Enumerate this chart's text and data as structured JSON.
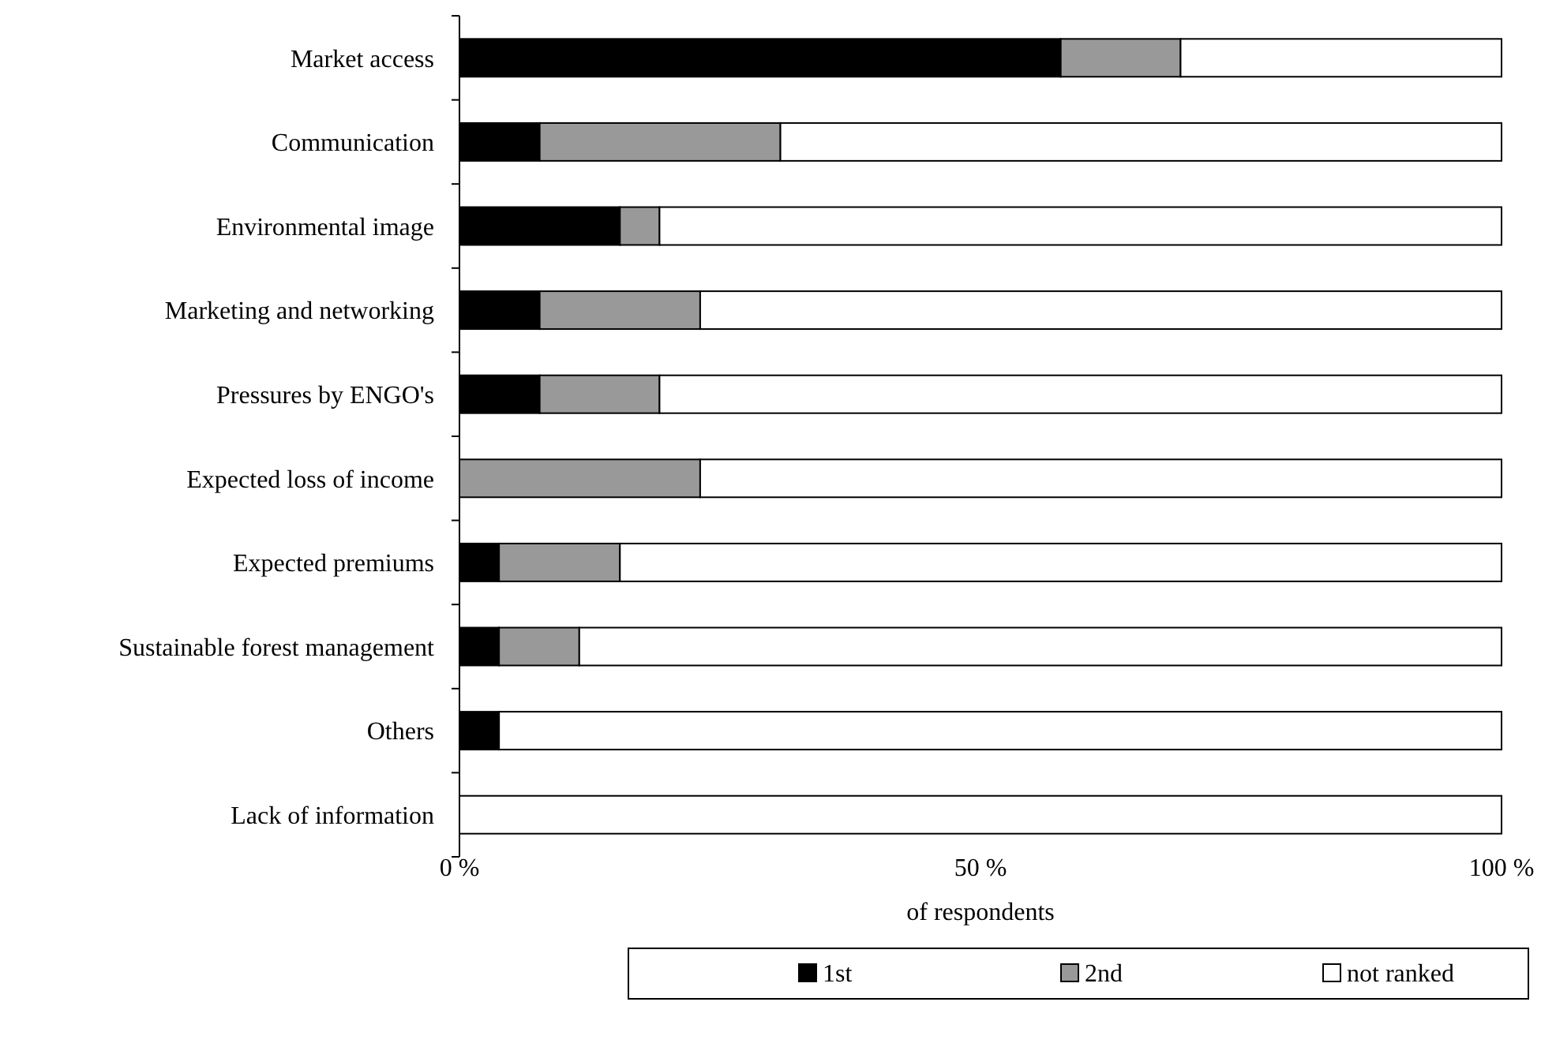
{
  "chart_data": {
    "type": "bar",
    "orientation": "horizontal",
    "stacked": true,
    "xlabel": "of respondents",
    "categories": [
      "Market access",
      "Communication",
      "Environmental image",
      "Marketing and networking",
      "Pressures by ENGO's",
      "Expected loss of income",
      "Expected premiums",
      "Sustainable forest management",
      "Others",
      "Lack of information"
    ],
    "series": [
      {
        "name": "1st",
        "color": "#000000",
        "values": [
          57.7,
          7.7,
          15.4,
          7.7,
          7.7,
          0,
          3.8,
          3.8,
          3.8,
          0
        ]
      },
      {
        "name": "2nd",
        "color": "#999999",
        "values": [
          11.5,
          23.1,
          3.8,
          15.4,
          11.5,
          23.1,
          11.6,
          7.7,
          0,
          0
        ]
      },
      {
        "name": "not ranked",
        "color": "#ffffff",
        "values": [
          30.8,
          69.2,
          80.8,
          76.9,
          80.8,
          76.9,
          84.6,
          88.5,
          96.2,
          100
        ]
      }
    ],
    "xlim": [
      0,
      100
    ],
    "xticks": [
      {
        "value": 0,
        "label": "0 %"
      },
      {
        "value": 50,
        "label": "50 %"
      },
      {
        "value": 100,
        "label": "100 %"
      }
    ],
    "grid": false,
    "legend": "bottom"
  }
}
